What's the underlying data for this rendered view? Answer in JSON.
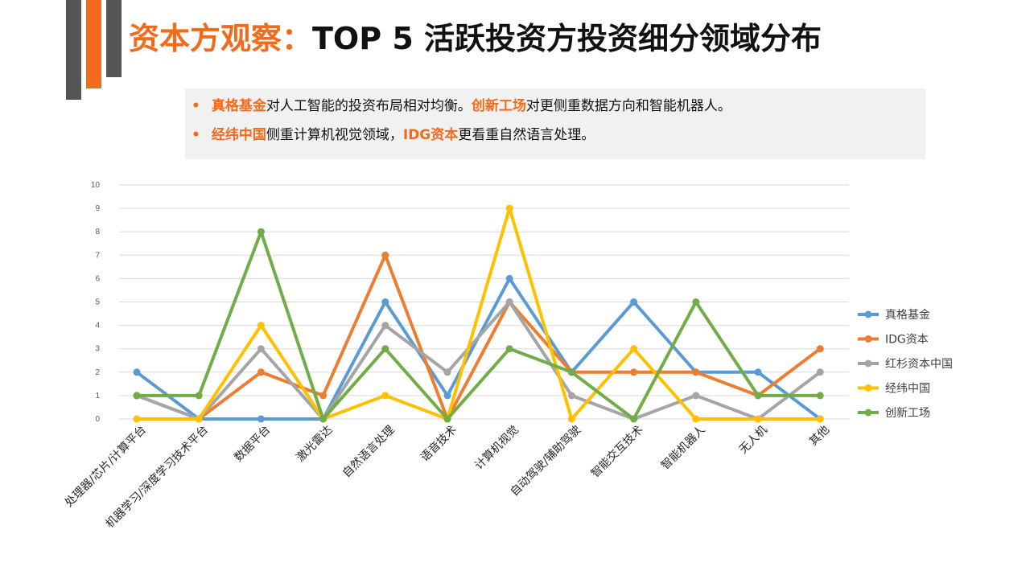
{
  "header": {
    "title_accent": "资本方观察：",
    "title_main": "TOP 5 活跃投资方投资细分领域分布"
  },
  "notes": [
    {
      "parts": [
        {
          "text": "真格基金",
          "hl": true
        },
        {
          "text": "对人工智能的投资布局相对均衡。",
          "hl": false
        },
        {
          "text": "创新工场",
          "hl": true
        },
        {
          "text": "对更侧重数据方向和智能机器人。",
          "hl": false
        }
      ]
    },
    {
      "parts": [
        {
          "text": "经纬中国",
          "hl": true
        },
        {
          "text": "侧重计算机视觉领域，",
          "hl": false
        },
        {
          "text": "IDG资本",
          "hl": true
        },
        {
          "text": "更看重自然语言处理。",
          "hl": false
        }
      ]
    }
  ],
  "chart_data": {
    "type": "line",
    "title": "",
    "xlabel": "",
    "ylabel": "",
    "ylim": [
      0,
      10
    ],
    "yticks": [
      "0",
      "1",
      "2",
      "3",
      "4",
      "5",
      "6",
      "7",
      "8",
      "9",
      "10"
    ],
    "grid": true,
    "legend_position": "right",
    "categories": [
      "处理器/芯片/计算平台",
      "机器学习/深度学习技术平台",
      "数据平台",
      "激光雷达",
      "自然语言处理",
      "语音技术",
      "计算机视觉",
      "自动驾驶/辅助驾驶",
      "智能交互技术",
      "智能机器人",
      "无人机",
      "其他"
    ],
    "series": [
      {
        "name": "真格基金",
        "color": "#5b9bd5",
        "values": [
          2,
          0,
          0,
          0,
          5,
          1,
          6,
          2,
          5,
          2,
          2,
          0
        ]
      },
      {
        "name": "IDG资本",
        "color": "#ed7d31",
        "values": [
          1,
          0,
          2,
          1,
          7,
          0,
          5,
          2,
          2,
          2,
          1,
          3
        ]
      },
      {
        "name": "红杉资本中国",
        "color": "#a5a5a5",
        "values": [
          1,
          0,
          3,
          0,
          4,
          2,
          5,
          1,
          0,
          1,
          0,
          2
        ]
      },
      {
        "name": "经纬中国",
        "color": "#ffc000",
        "values": [
          0,
          0,
          4,
          0,
          1,
          0,
          9,
          0,
          3,
          0,
          0,
          0
        ]
      },
      {
        "name": "创新工场",
        "color": "#70ad47",
        "values": [
          1,
          1,
          8,
          0,
          3,
          0,
          3,
          2,
          0,
          5,
          1,
          1
        ]
      }
    ]
  }
}
